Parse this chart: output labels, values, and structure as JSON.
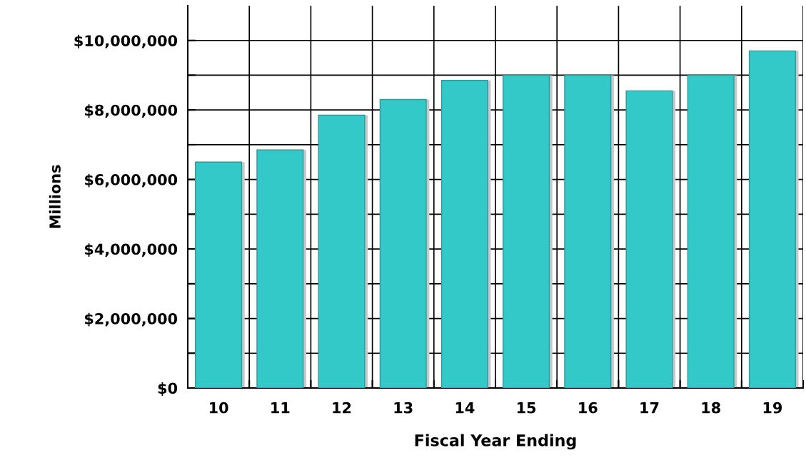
{
  "chart_data": {
    "type": "bar",
    "xlabel": "Fiscal Year Ending",
    "ylabel": "Millions",
    "categories": [
      "10",
      "11",
      "12",
      "13",
      "14",
      "15",
      "16",
      "17",
      "18",
      "19"
    ],
    "values": [
      6500000,
      6850000,
      7850000,
      8300000,
      8850000,
      9000000,
      9000000,
      8550000,
      9000000,
      9700000
    ],
    "color": "#33c9c9",
    "ylim": [
      0,
      11000000
    ],
    "yticks": [
      {
        "value": 0,
        "label": "$0"
      },
      {
        "value": 1000000,
        "label": null
      },
      {
        "value": 2000000,
        "label": "$2,000,000"
      },
      {
        "value": 3000000,
        "label": null
      },
      {
        "value": 4000000,
        "label": "$4,000,000"
      },
      {
        "value": 5000000,
        "label": null
      },
      {
        "value": 6000000,
        "label": "$6,000,000"
      },
      {
        "value": 7000000,
        "label": null
      },
      {
        "value": 8000000,
        "label": "$8,000,000"
      },
      {
        "value": 9000000,
        "label": null
      },
      {
        "value": 10000000,
        "label": "$10,000,000"
      }
    ],
    "grid": true
  }
}
